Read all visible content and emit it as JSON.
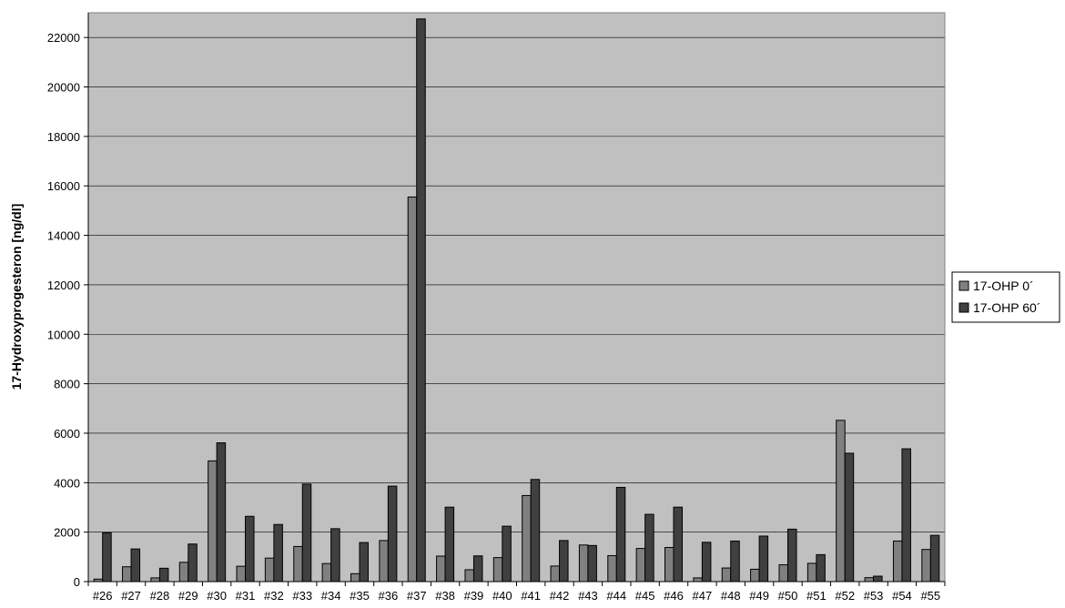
{
  "chart_data": {
    "type": "bar",
    "ylabel": "17-Hydroxyprogesteron [ng/dl]",
    "xlabel": "",
    "ylim": [
      0,
      23000
    ],
    "yticks": [
      0,
      2000,
      4000,
      6000,
      8000,
      10000,
      12000,
      14000,
      16000,
      18000,
      20000,
      22000
    ],
    "grid": true,
    "legend_position": "right",
    "categories": [
      "#26",
      "#27",
      "#28",
      "#29",
      "#30",
      "#31",
      "#32",
      "#33",
      "#34",
      "#35",
      "#36",
      "#37",
      "#38",
      "#39",
      "#40",
      "#41",
      "#42",
      "#43",
      "#44",
      "#45",
      "#46",
      "#47",
      "#48",
      "#49",
      "#50",
      "#51",
      "#52",
      "#53",
      "#54",
      "#55"
    ],
    "series": [
      {
        "name": "17-OHP 0´",
        "color": "#808080",
        "values": [
          100,
          600,
          150,
          780,
          4880,
          620,
          950,
          1420,
          730,
          320,
          1660,
          15550,
          1030,
          480,
          970,
          3480,
          630,
          1480,
          1050,
          1340,
          1380,
          150,
          550,
          500,
          680,
          740,
          6520,
          160,
          1640,
          1300
        ]
      },
      {
        "name": "17-OHP 60´",
        "color": "#404040",
        "values": [
          1970,
          1320,
          540,
          1520,
          5610,
          2640,
          2310,
          3940,
          2140,
          1580,
          3860,
          22750,
          3010,
          1040,
          2240,
          4130,
          1660,
          1460,
          3810,
          2720,
          3010,
          1590,
          1640,
          1840,
          2120,
          1090,
          5190,
          220,
          5370,
          1870
        ]
      }
    ]
  }
}
